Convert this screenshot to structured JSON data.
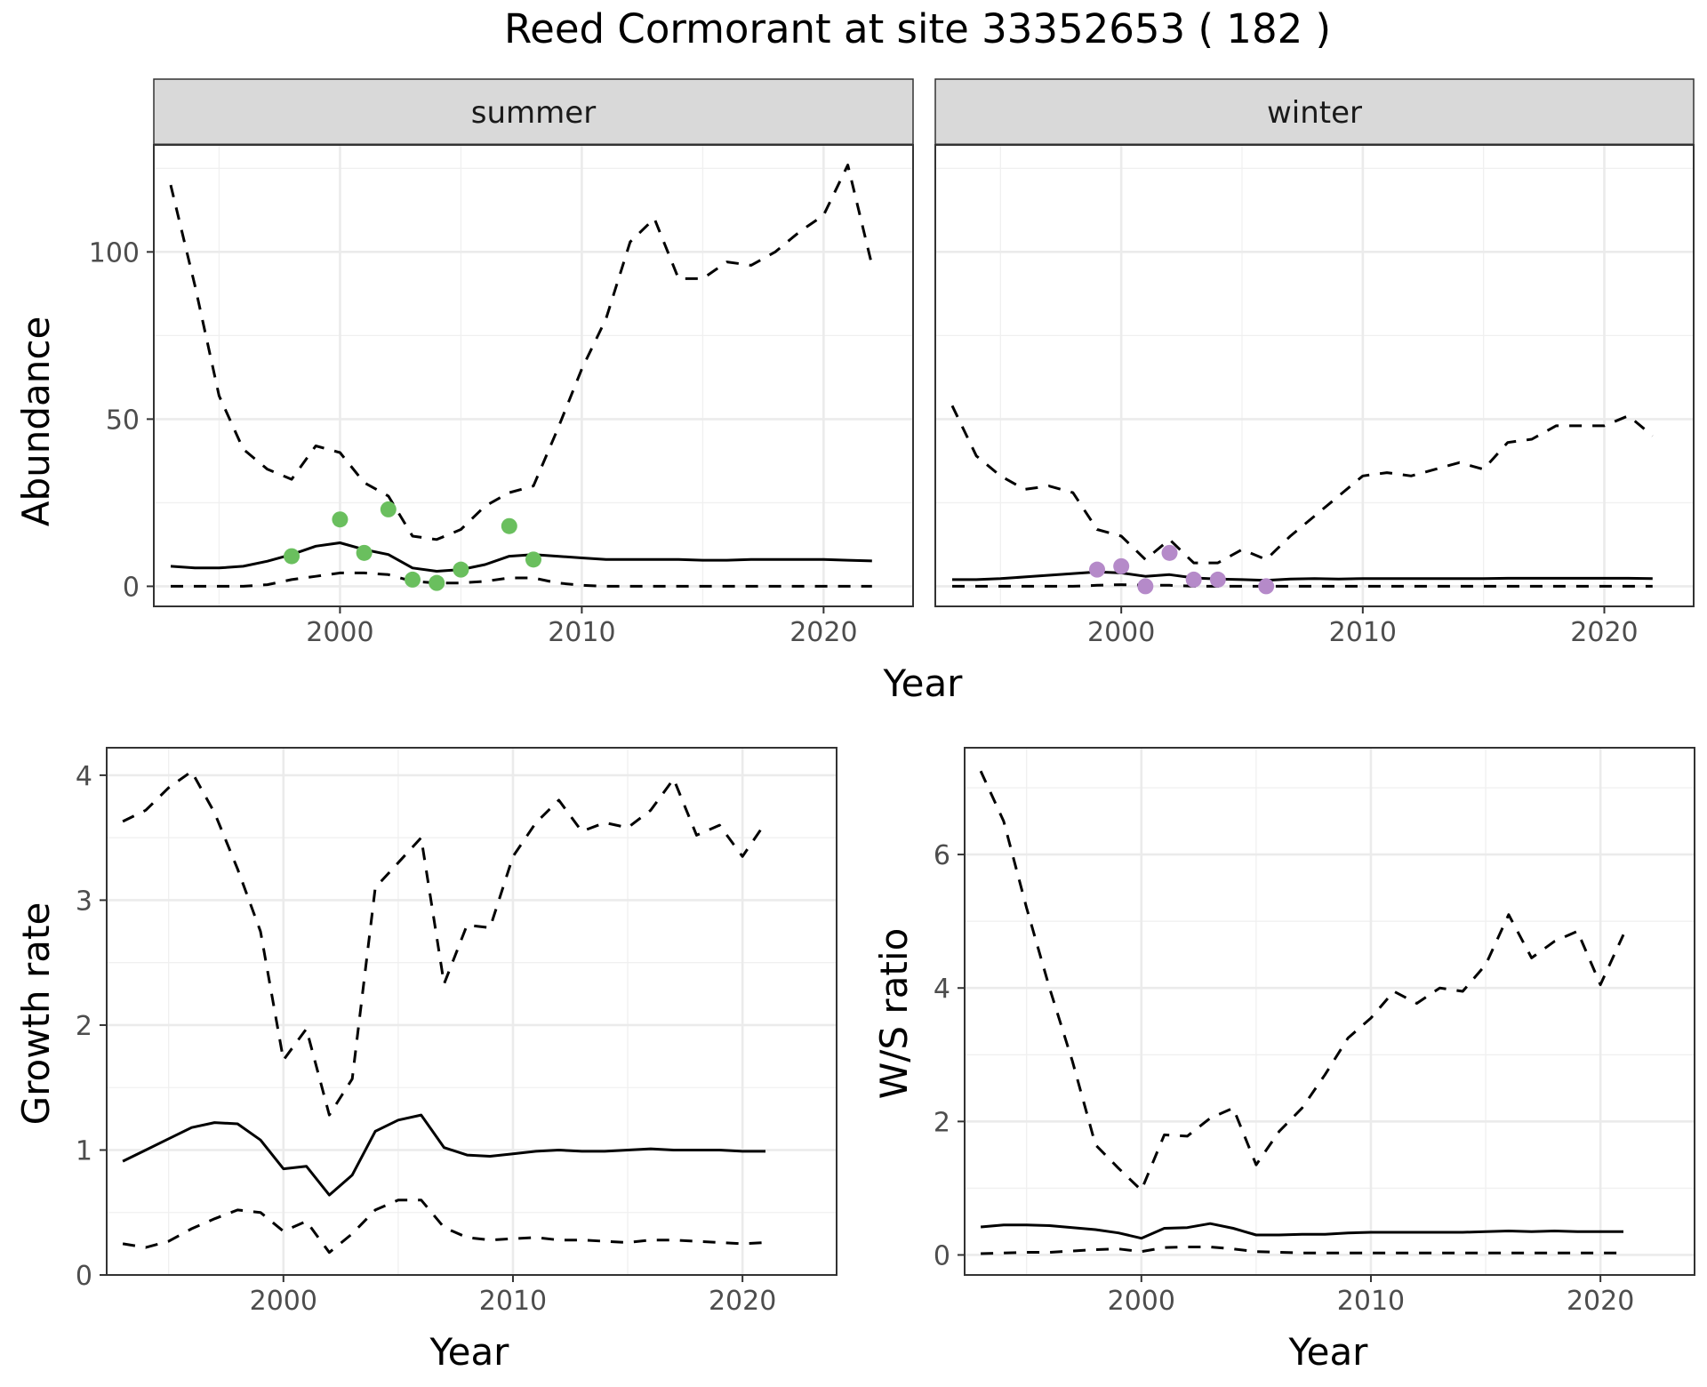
{
  "figure": {
    "title": "Reed Cormorant at site 33352653 ( 182 )",
    "top_xlabel": "Year",
    "top_ylabel": "Abundance",
    "bottom_left_xlabel": "Year",
    "bottom_left_ylabel": "Growth rate",
    "bottom_right_xlabel": "Year",
    "bottom_right_ylabel": "W/S ratio"
  },
  "chart_data": [
    {
      "type": "line",
      "panel": "summer",
      "facet_label": "summer",
      "xlabel": "Year",
      "ylabel": "Abundance",
      "xlim": [
        1992.3,
        2023.7
      ],
      "ylim": [
        -6,
        132
      ],
      "xticks": [
        2000,
        2010,
        2020
      ],
      "yticks": [
        0,
        50,
        100
      ],
      "grid": true,
      "point_color": "#6abf5e",
      "series": [
        {
          "style": "dashed",
          "x": [
            1993,
            1994,
            1995,
            1996,
            1997,
            1998,
            1999,
            2000,
            2001,
            2002,
            2003,
            2004,
            2005,
            2006,
            2007,
            2008,
            2009,
            2010,
            2011,
            2012,
            2013,
            2014,
            2015,
            2016,
            2017,
            2018,
            2019,
            2020,
            2021,
            2022
          ],
          "values": [
            120,
            90,
            57,
            41,
            35,
            32,
            42,
            40,
            31,
            27,
            15,
            14,
            17,
            24,
            28,
            30,
            47,
            65,
            80,
            103,
            110,
            92,
            92,
            97,
            96,
            100,
            106,
            111,
            126,
            96
          ]
        },
        {
          "style": "solid",
          "x": [
            1993,
            1994,
            1995,
            1996,
            1997,
            1998,
            1999,
            2000,
            2001,
            2002,
            2003,
            2004,
            2005,
            2006,
            2007,
            2008,
            2009,
            2010,
            2011,
            2012,
            2013,
            2014,
            2015,
            2016,
            2017,
            2018,
            2019,
            2020,
            2021,
            2022
          ],
          "values": [
            6,
            5.5,
            5.5,
            6,
            7.5,
            9.5,
            12,
            13,
            11,
            9.5,
            5.5,
            4.5,
            5,
            6.5,
            9,
            9.5,
            9,
            8.5,
            8,
            8,
            8,
            8,
            7.8,
            7.8,
            8,
            8,
            8,
            8,
            7.8,
            7.6
          ]
        },
        {
          "style": "dashed",
          "x": [
            1993,
            1994,
            1995,
            1996,
            1997,
            1998,
            1999,
            2000,
            2001,
            2002,
            2003,
            2004,
            2005,
            2006,
            2007,
            2008,
            2009,
            2010,
            2011,
            2012,
            2013,
            2014,
            2015,
            2016,
            2017,
            2018,
            2019,
            2020,
            2021,
            2022
          ],
          "values": [
            0,
            0,
            0,
            0,
            0.5,
            2,
            3,
            4,
            4,
            3.5,
            1.5,
            1,
            1,
            1.5,
            2.5,
            2.5,
            1,
            0.3,
            0,
            0,
            0,
            0,
            0,
            0,
            0,
            0,
            0,
            0,
            0,
            0
          ]
        },
        {
          "style": "points",
          "x": [
            1998,
            2000,
            2001,
            2002,
            2003,
            2004,
            2005,
            2007,
            2008
          ],
          "values": [
            9,
            20,
            10,
            23,
            2,
            1,
            5,
            18,
            8
          ]
        }
      ]
    },
    {
      "type": "line",
      "panel": "winter",
      "facet_label": "winter",
      "xlabel": "Year",
      "ylabel": "Abundance",
      "xlim": [
        1992.3,
        2023.7
      ],
      "ylim": [
        -6,
        132
      ],
      "xticks": [
        2000,
        2010,
        2020
      ],
      "yticks": [
        0,
        50,
        100
      ],
      "grid": true,
      "point_color": "#b58ac9",
      "series": [
        {
          "style": "dashed",
          "x": [
            1993,
            1994,
            1995,
            1996,
            1997,
            1998,
            1999,
            2000,
            2001,
            2002,
            2003,
            2004,
            2005,
            2006,
            2007,
            2008,
            2009,
            2010,
            2011,
            2012,
            2013,
            2014,
            2015,
            2016,
            2017,
            2018,
            2019,
            2020,
            2021,
            2022
          ],
          "values": [
            54,
            39,
            33,
            29,
            30,
            28,
            17,
            15,
            8,
            14,
            7,
            7,
            11,
            8,
            15,
            21,
            27,
            33,
            34,
            33,
            35,
            37,
            35,
            43,
            44,
            48,
            48,
            48,
            51,
            45
          ]
        },
        {
          "style": "solid",
          "x": [
            1993,
            1994,
            1995,
            1996,
            1997,
            1998,
            1999,
            2000,
            2001,
            2002,
            2003,
            2004,
            2005,
            2006,
            2007,
            2008,
            2009,
            2010,
            2011,
            2012,
            2013,
            2014,
            2015,
            2016,
            2017,
            2018,
            2019,
            2020,
            2021,
            2022
          ],
          "values": [
            2,
            2,
            2.3,
            2.8,
            3.3,
            3.8,
            4.3,
            4,
            3,
            3.5,
            2.5,
            2.2,
            2,
            1.8,
            2.2,
            2.3,
            2.2,
            2.3,
            2.3,
            2.3,
            2.3,
            2.3,
            2.3,
            2.4,
            2.4,
            2.4,
            2.4,
            2.4,
            2.4,
            2.3
          ]
        },
        {
          "style": "dashed",
          "x": [
            1993,
            1994,
            1995,
            1996,
            1997,
            1998,
            1999,
            2000,
            2001,
            2002,
            2003,
            2004,
            2005,
            2006,
            2007,
            2008,
            2009,
            2010,
            2011,
            2012,
            2013,
            2014,
            2015,
            2016,
            2017,
            2018,
            2019,
            2020,
            2021,
            2022
          ],
          "values": [
            0,
            0,
            0,
            0,
            0,
            0,
            0.3,
            0.5,
            0.3,
            0.3,
            0,
            0,
            0,
            0,
            0,
            0,
            0,
            0,
            0,
            0,
            0,
            0,
            0,
            0,
            0,
            0,
            0,
            0,
            0,
            0
          ]
        },
        {
          "style": "points",
          "x": [
            1999,
            2000,
            2001,
            2002,
            2003,
            2004,
            2006
          ],
          "values": [
            5,
            6,
            0,
            10,
            2,
            2,
            0
          ]
        }
      ]
    },
    {
      "type": "line",
      "panel": "growth",
      "xlabel": "Year",
      "ylabel": "Growth rate",
      "xlim": [
        1992.3,
        2024.1
      ],
      "ylim": [
        0,
        4.22
      ],
      "xticks": [
        2000,
        2010,
        2020
      ],
      "yticks": [
        0,
        1,
        2,
        3,
        4
      ],
      "grid": true,
      "series": [
        {
          "style": "dashed",
          "x": [
            1993,
            1994,
            1995,
            1996,
            1997,
            1998,
            1999,
            2000,
            2001,
            2002,
            2003,
            2004,
            2005,
            2006,
            2007,
            2008,
            2009,
            2010,
            2011,
            2012,
            2013,
            2014,
            2015,
            2016,
            2017,
            2018,
            2019,
            2020,
            2021
          ],
          "values": [
            3.63,
            3.72,
            3.9,
            4.03,
            3.7,
            3.25,
            2.75,
            1.72,
            1.97,
            1.28,
            1.57,
            3.1,
            3.3,
            3.5,
            2.33,
            2.8,
            2.78,
            3.35,
            3.62,
            3.8,
            3.55,
            3.62,
            3.58,
            3.72,
            3.97,
            3.52,
            3.6,
            3.35,
            3.62
          ]
        },
        {
          "style": "solid",
          "x": [
            1993,
            1994,
            1995,
            1996,
            1997,
            1998,
            1999,
            2000,
            2001,
            2002,
            2003,
            2004,
            2005,
            2006,
            2007,
            2008,
            2009,
            2010,
            2011,
            2012,
            2013,
            2014,
            2015,
            2016,
            2017,
            2018,
            2019,
            2020,
            2021
          ],
          "values": [
            0.91,
            1.0,
            1.09,
            1.18,
            1.22,
            1.21,
            1.08,
            0.85,
            0.87,
            0.64,
            0.8,
            1.15,
            1.24,
            1.28,
            1.02,
            0.96,
            0.95,
            0.97,
            0.99,
            1.0,
            0.99,
            0.99,
            1.0,
            1.01,
            1.0,
            1.0,
            1.0,
            0.99,
            0.99
          ]
        },
        {
          "style": "dashed",
          "x": [
            1993,
            1994,
            1995,
            1996,
            1997,
            1998,
            1999,
            2000,
            2001,
            2002,
            2003,
            2004,
            2005,
            2006,
            2007,
            2008,
            2009,
            2010,
            2011,
            2012,
            2013,
            2014,
            2015,
            2016,
            2017,
            2018,
            2019,
            2020,
            2021
          ],
          "values": [
            0.25,
            0.22,
            0.27,
            0.37,
            0.45,
            0.52,
            0.5,
            0.35,
            0.43,
            0.18,
            0.33,
            0.52,
            0.6,
            0.6,
            0.38,
            0.3,
            0.28,
            0.29,
            0.3,
            0.28,
            0.28,
            0.27,
            0.26,
            0.28,
            0.28,
            0.27,
            0.26,
            0.25,
            0.26
          ]
        }
      ]
    },
    {
      "type": "line",
      "panel": "ratio",
      "xlabel": "Year",
      "ylabel": "W/S ratio",
      "xlim": [
        1992.3,
        2024.1
      ],
      "ylim": [
        -0.3,
        7.6
      ],
      "xticks": [
        2000,
        2010,
        2020
      ],
      "yticks": [
        0,
        2,
        4,
        6
      ],
      "grid": true,
      "series": [
        {
          "style": "dashed",
          "x": [
            1993,
            1994,
            1995,
            1996,
            1997,
            1998,
            1999,
            2000,
            2001,
            2002,
            2003,
            2004,
            2005,
            2006,
            2007,
            2008,
            2009,
            2010,
            2011,
            2012,
            2013,
            2014,
            2015,
            2016,
            2017,
            2018,
            2019,
            2020,
            2021
          ],
          "values": [
            7.25,
            6.5,
            5.2,
            4.0,
            2.9,
            1.65,
            1.3,
            0.97,
            1.8,
            1.78,
            2.05,
            2.2,
            1.35,
            1.85,
            2.2,
            2.7,
            3.25,
            3.55,
            3.95,
            3.77,
            4.0,
            3.95,
            4.35,
            5.1,
            4.45,
            4.7,
            4.85,
            4.05,
            4.8
          ]
        },
        {
          "style": "solid",
          "x": [
            1993,
            1994,
            1995,
            1996,
            1997,
            1998,
            1999,
            2000,
            2001,
            2002,
            2003,
            2004,
            2005,
            2006,
            2007,
            2008,
            2009,
            2010,
            2011,
            2012,
            2013,
            2014,
            2015,
            2016,
            2017,
            2018,
            2019,
            2020,
            2021
          ],
          "values": [
            0.42,
            0.45,
            0.45,
            0.44,
            0.41,
            0.38,
            0.33,
            0.25,
            0.4,
            0.41,
            0.47,
            0.4,
            0.3,
            0.3,
            0.31,
            0.31,
            0.33,
            0.34,
            0.34,
            0.34,
            0.34,
            0.34,
            0.35,
            0.36,
            0.35,
            0.36,
            0.35,
            0.35,
            0.35
          ]
        },
        {
          "style": "dashed",
          "x": [
            1993,
            1994,
            1995,
            1996,
            1997,
            1998,
            1999,
            2000,
            2001,
            2002,
            2003,
            2004,
            2005,
            2006,
            2007,
            2008,
            2009,
            2010,
            2011,
            2012,
            2013,
            2014,
            2015,
            2016,
            2017,
            2018,
            2019,
            2020,
            2021
          ],
          "values": [
            0.02,
            0.03,
            0.04,
            0.04,
            0.06,
            0.08,
            0.09,
            0.05,
            0.11,
            0.12,
            0.12,
            0.09,
            0.05,
            0.04,
            0.03,
            0.03,
            0.03,
            0.03,
            0.03,
            0.03,
            0.03,
            0.03,
            0.03,
            0.03,
            0.03,
            0.03,
            0.03,
            0.03,
            0.03
          ]
        }
      ]
    }
  ]
}
